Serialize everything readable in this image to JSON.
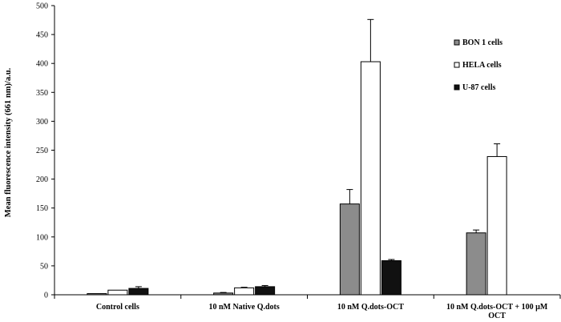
{
  "chart_data": {
    "type": "bar",
    "ylabel": "Mean fluorescence intensity (661 nm)/a.u.",
    "xlabel": "",
    "ylim": [
      0,
      500
    ],
    "yticks": [
      "0",
      "50",
      "100",
      "150",
      "200",
      "250",
      "300",
      "350",
      "400",
      "450",
      "500"
    ],
    "grid": false,
    "legend_position": "right",
    "categories": [
      [
        "Control cells"
      ],
      [
        "10 nM Native Q.dots"
      ],
      [
        "10 nM Q.dots-OCT"
      ],
      [
        "10 nM Q.dots-OCT + 100 µM",
        "OCT"
      ]
    ],
    "series": [
      {
        "name": "BON 1 cells",
        "color": "#8c8c8c",
        "values": [
          2,
          3,
          157,
          107
        ],
        "errors": [
          0,
          1,
          25,
          5
        ]
      },
      {
        "name": "HELA cells",
        "color": "#ffffff",
        "values": [
          8,
          12,
          403,
          239
        ],
        "errors": [
          0,
          1,
          73,
          22
        ]
      },
      {
        "name": "U-87 cells",
        "color": "#111111",
        "values": [
          11,
          14,
          59,
          null
        ],
        "errors": [
          3,
          2,
          2,
          null
        ]
      }
    ]
  }
}
